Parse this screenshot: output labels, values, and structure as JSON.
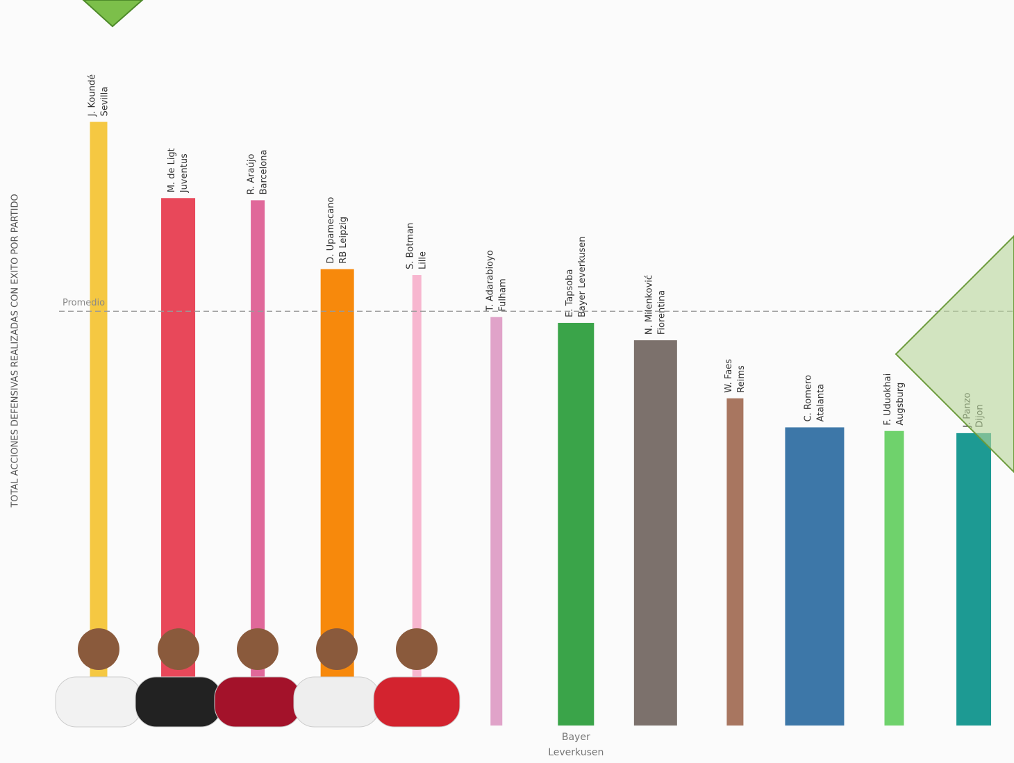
{
  "chart_data": {
    "type": "bar",
    "y_label": "TOTAL ACCIONES DEFENSIVAS REALIZADAS CON EXITO POR PARTIDO",
    "categories": [
      "Sevilla",
      "Juventus",
      "Barcelona",
      "RB Leipzig",
      "Lille",
      "Fulham",
      "Bayer Leverkusen",
      "Fiorentina",
      "Reims",
      "Atalanta",
      "Augsburg",
      "Dijon"
    ],
    "players": [
      "J. Koundé",
      "M. de Ligt",
      "R. Araújo",
      "D. Upamecano",
      "S. Botman",
      "T. Adarabioyo",
      "E. Tapsoba",
      "N. Milenković",
      "W. Faes",
      "C. Romero",
      "F. Uduokhai",
      "J. Panzo"
    ],
    "values": [
      8.32,
      7.27,
      7.24,
      6.29,
      6.21,
      5.63,
      5.55,
      5.31,
      4.51,
      4.11,
      4.06,
      4.03
    ],
    "colors": [
      "#f5c842",
      "#e8485a",
      "#e0689a",
      "#f7890c",
      "#f7b6cf",
      "#e0a3c9",
      "#3aa449",
      "#7c716c",
      "#a87660",
      "#3d77a8",
      "#6fd26c",
      "#1d9a93"
    ],
    "ylim": [
      0,
      10
    ],
    "reference_line": {
      "label": "Promedio",
      "value": 5.71
    }
  }
}
